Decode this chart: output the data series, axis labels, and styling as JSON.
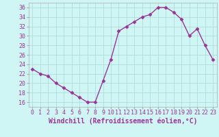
{
  "x": [
    0,
    1,
    2,
    3,
    4,
    5,
    6,
    7,
    8,
    9,
    10,
    11,
    12,
    13,
    14,
    15,
    16,
    17,
    18,
    19,
    20,
    21,
    22,
    23
  ],
  "y": [
    23,
    22,
    21.5,
    20,
    19,
    18,
    17,
    16,
    16,
    20.5,
    25,
    31,
    32,
    33,
    34,
    34.5,
    36,
    36,
    35,
    33.5,
    30,
    31.5,
    28,
    25
  ],
  "line_color": "#993399",
  "marker": "D",
  "marker_size": 2.5,
  "bg_color": "#cff5f5",
  "grid_color": "#aad8d8",
  "xlabel": "Windchill (Refroidissement éolien,°C)",
  "xlabel_fontsize": 7,
  "xlim": [
    -0.5,
    23.5
  ],
  "ylim": [
    15,
    37
  ],
  "yticks": [
    16,
    18,
    20,
    22,
    24,
    26,
    28,
    30,
    32,
    34,
    36
  ],
  "xticks": [
    0,
    1,
    2,
    3,
    4,
    5,
    6,
    7,
    8,
    9,
    10,
    11,
    12,
    13,
    14,
    15,
    16,
    17,
    18,
    19,
    20,
    21,
    22,
    23
  ],
  "tick_fontsize": 6,
  "line_width": 1.0
}
